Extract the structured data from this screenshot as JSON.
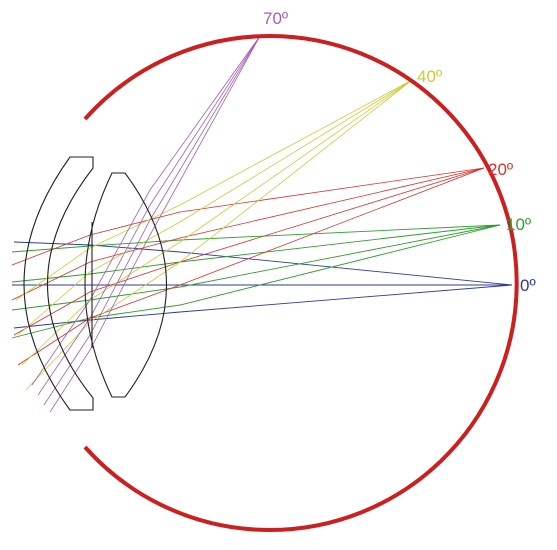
{
  "colors": {
    "retina_arc": "#cc1f1f",
    "lens": "#222222",
    "angle_0": "#2b3a9e",
    "angle_10": "#2e9e2e",
    "angle_20": "#d9302a",
    "angle_40": "#c9cc3a",
    "angle_70": "#a65fb3"
  },
  "labels": {
    "a70": "70º",
    "a40": "40º",
    "a20": "20º",
    "a10": "10º",
    "a0": "0º"
  }
}
